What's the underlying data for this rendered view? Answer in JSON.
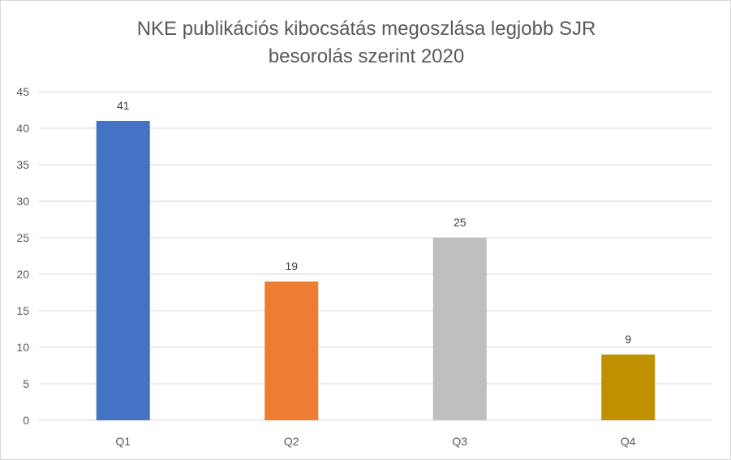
{
  "chart_data": {
    "type": "bar",
    "title_line1": "NKE publikációs kibocsátás megoszlása legjobb SJR",
    "title_line2": "besorolás szerint 2020",
    "categories": [
      "Q1",
      "Q2",
      "Q3",
      "Q4"
    ],
    "values": [
      41,
      19,
      25,
      9
    ],
    "colors": [
      "#4472C4",
      "#ED7D31",
      "#BFBFBF",
      "#BF9000"
    ],
    "ylim": [
      0,
      45
    ],
    "yticks": [
      0,
      5,
      10,
      15,
      20,
      25,
      30,
      35,
      40,
      45
    ],
    "grid": true,
    "legend": "none",
    "data_labels": true
  }
}
